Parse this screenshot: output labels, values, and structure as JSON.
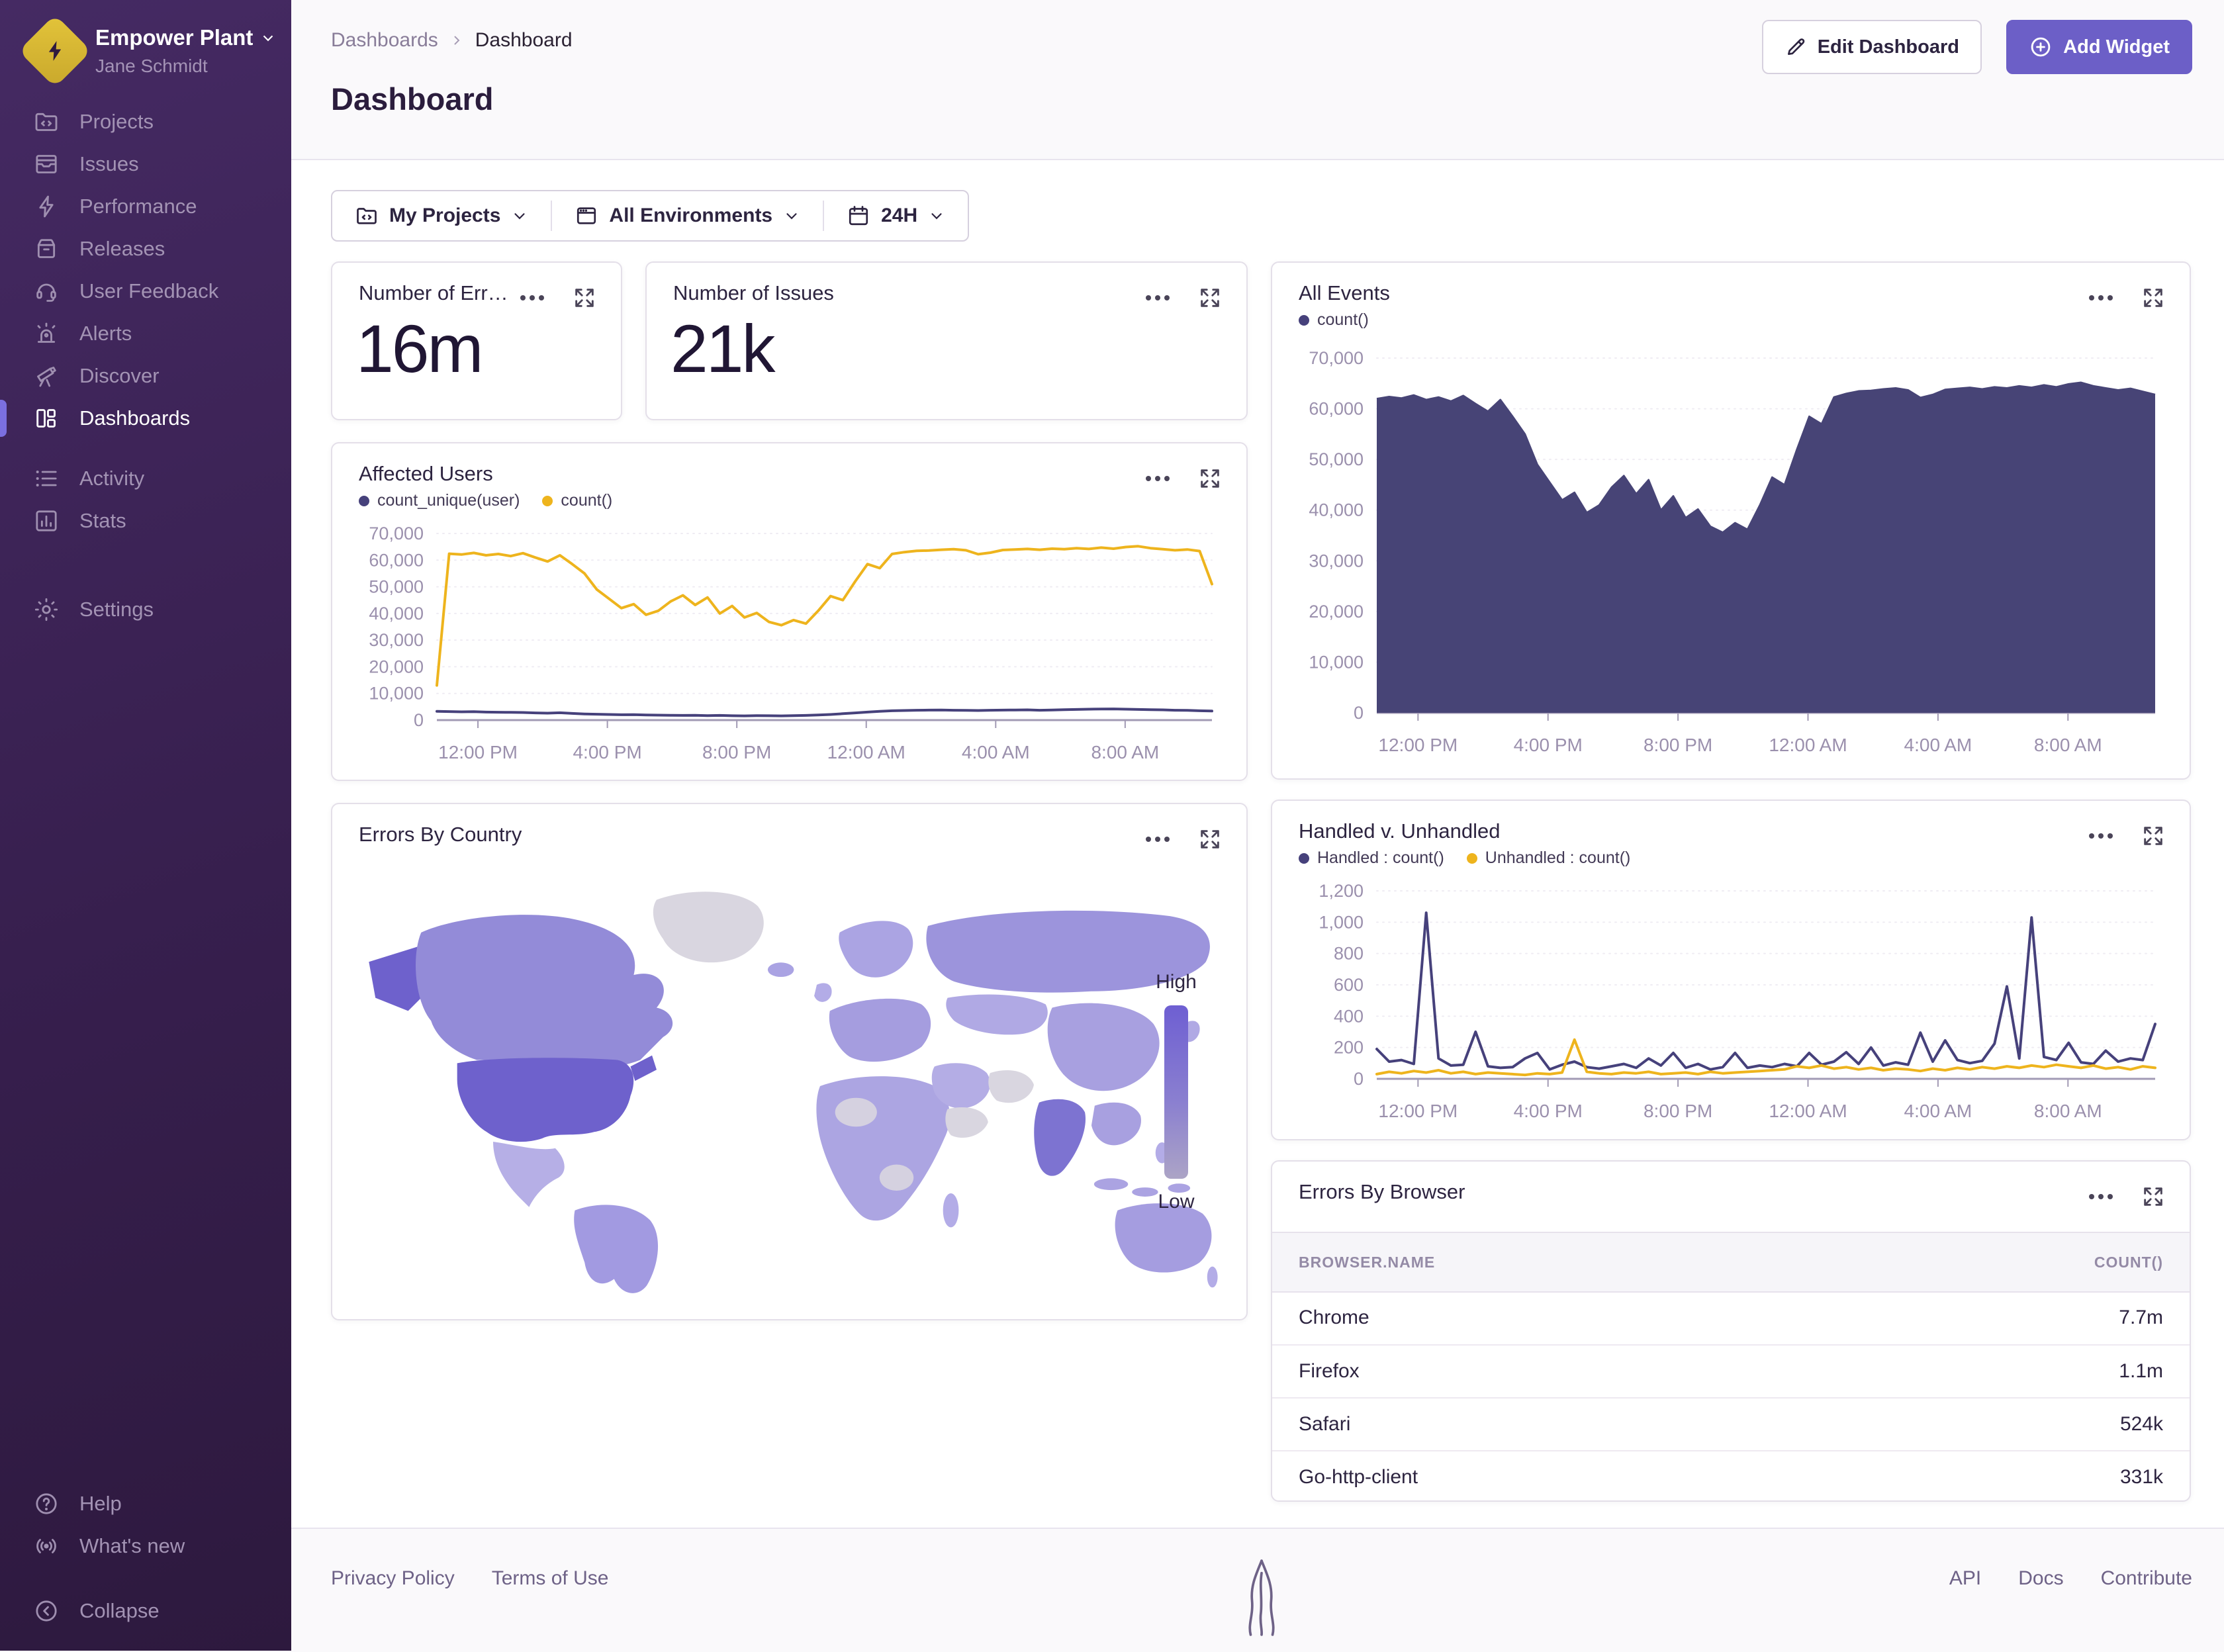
{
  "sidebar": {
    "org_name": "Empower Plant",
    "user_name": "Jane Schmidt",
    "items": [
      {
        "label": "Projects",
        "icon": "projects-icon"
      },
      {
        "label": "Issues",
        "icon": "issues-icon"
      },
      {
        "label": "Performance",
        "icon": "performance-icon"
      },
      {
        "label": "Releases",
        "icon": "releases-icon"
      },
      {
        "label": "User Feedback",
        "icon": "user-feedback-icon"
      },
      {
        "label": "Alerts",
        "icon": "alerts-icon"
      },
      {
        "label": "Discover",
        "icon": "discover-icon"
      },
      {
        "label": "Dashboards",
        "icon": "dashboards-icon",
        "active": true
      }
    ],
    "secondary": [
      {
        "label": "Activity",
        "icon": "activity-icon"
      },
      {
        "label": "Stats",
        "icon": "stats-icon"
      }
    ],
    "settings_label": "Settings",
    "footer_items": [
      {
        "label": "Help",
        "icon": "help-icon"
      },
      {
        "label": "What's new",
        "icon": "broadcast-icon"
      },
      {
        "label": "Collapse",
        "icon": "collapse-icon"
      }
    ]
  },
  "header": {
    "breadcrumb": [
      "Dashboards",
      "Dashboard"
    ],
    "title": "Dashboard",
    "edit_button": "Edit Dashboard",
    "add_button": "Add Widget"
  },
  "filters": {
    "projects": "My Projects",
    "environments": "All Environments",
    "time_range": "24H"
  },
  "kpis": [
    {
      "title": "Number of Err…",
      "value": "16m"
    },
    {
      "title": "Number of Issues",
      "value": "21k"
    }
  ],
  "chart_data": [
    {
      "id": "all-events",
      "type": "area",
      "title": "All Events",
      "legend": [
        {
          "label": "count()",
          "color": "#46417b"
        }
      ],
      "x_ticks": [
        "12:00 PM",
        "4:00 PM",
        "8:00 PM",
        "12:00 AM",
        "4:00 AM",
        "8:00 AM"
      ],
      "x_tick_pos": [
        0.053,
        0.22,
        0.387,
        0.554,
        0.721,
        0.888
      ],
      "ylim": [
        0,
        70000
      ],
      "yticks": [
        0,
        10000,
        20000,
        30000,
        40000,
        50000,
        60000,
        70000
      ],
      "grid": true,
      "legend_position": "top-left",
      "series": [
        {
          "name": "count()",
          "color": "#474476",
          "values": [
            62000,
            62400,
            62100,
            62700,
            61800,
            62300,
            61500,
            62600,
            61000,
            59500,
            61800,
            58500,
            55000,
            49000,
            45500,
            42000,
            43500,
            39500,
            41000,
            44500,
            46800,
            43200,
            46000,
            40000,
            42800,
            38500,
            40200,
            36800,
            35600,
            37500,
            36200,
            41000,
            46500,
            45000,
            52000,
            58500,
            57000,
            62300,
            63000,
            63500,
            63600,
            63900,
            64100,
            63700,
            62200,
            62800,
            63800,
            64000,
            64200,
            63900,
            64300,
            64100,
            64500,
            64200,
            64700,
            64300,
            64900,
            65200,
            64500,
            64100,
            63700,
            64000,
            63400,
            62800
          ]
        }
      ]
    },
    {
      "id": "affected-users",
      "type": "line",
      "title": "Affected Users",
      "legend": [
        {
          "label": "count_unique(user)",
          "color": "#46417b"
        },
        {
          "label": "count()",
          "color": "#eeb41d"
        }
      ],
      "x_ticks": [
        "12:00 PM",
        "4:00 PM",
        "8:00 PM",
        "12:00 AM",
        "4:00 AM",
        "8:00 AM"
      ],
      "x_tick_pos": [
        0.053,
        0.22,
        0.387,
        0.554,
        0.721,
        0.888
      ],
      "ylim": [
        0,
        70000
      ],
      "yticks": [
        0,
        10000,
        20000,
        30000,
        40000,
        50000,
        60000,
        70000
      ],
      "grid": true,
      "legend_position": "top-left",
      "series": [
        {
          "name": "count_unique(user)",
          "color": "#46417b",
          "values": [
            3300,
            3200,
            3100,
            3150,
            3000,
            2950,
            2900,
            2850,
            2700,
            2600,
            2750,
            2500,
            2300,
            2200,
            2100,
            2000,
            2050,
            1900,
            1850,
            1800,
            1750,
            1800,
            1700,
            1750,
            1650,
            1600,
            1700,
            1650,
            1600,
            1700,
            1750,
            1900,
            2100,
            2400,
            2700,
            3000,
            3300,
            3500,
            3600,
            3700,
            3750,
            3800,
            3700,
            3650,
            3600,
            3700,
            3750,
            3800,
            3850,
            3700,
            3800,
            3900,
            4000,
            4100,
            4150,
            4200,
            4100,
            4000,
            3900,
            3850,
            3700,
            3650,
            3500,
            3400
          ]
        },
        {
          "name": "count()",
          "color": "#eeb41d",
          "values": [
            13000,
            62400,
            62100,
            62700,
            61800,
            62300,
            61500,
            62600,
            61000,
            59500,
            61800,
            58500,
            55000,
            49000,
            45500,
            42000,
            43500,
            39500,
            41000,
            44500,
            46800,
            43200,
            46000,
            40000,
            42800,
            38500,
            40200,
            36800,
            35600,
            37500,
            36200,
            41000,
            46500,
            45000,
            52000,
            58500,
            57000,
            62300,
            63000,
            63500,
            63600,
            63900,
            64100,
            63700,
            62200,
            62800,
            63800,
            64000,
            64200,
            63900,
            64300,
            64100,
            64500,
            64200,
            64700,
            64300,
            64900,
            65200,
            64500,
            64100,
            63700,
            64000,
            63400,
            51000
          ]
        }
      ]
    },
    {
      "id": "handled-unhandled",
      "type": "line",
      "title": "Handled v. Unhandled",
      "legend": [
        {
          "label": "Handled : count()",
          "color": "#46417b"
        },
        {
          "label": "Unhandled : count()",
          "color": "#eeb41d"
        }
      ],
      "x_ticks": [
        "12:00 PM",
        "4:00 PM",
        "8:00 PM",
        "12:00 AM",
        "4:00 AM",
        "8:00 AM"
      ],
      "x_tick_pos": [
        0.053,
        0.22,
        0.387,
        0.554,
        0.721,
        0.888
      ],
      "ylim": [
        0,
        1200
      ],
      "yticks": [
        0,
        200,
        400,
        600,
        800,
        1000,
        1200
      ],
      "grid": true,
      "legend_position": "top-left",
      "series": [
        {
          "name": "Handled : count()",
          "color": "#46417b",
          "values": [
            190,
            110,
            120,
            95,
            1060,
            130,
            85,
            90,
            300,
            80,
            70,
            75,
            130,
            165,
            60,
            90,
            110,
            75,
            65,
            80,
            95,
            70,
            130,
            85,
            165,
            70,
            95,
            60,
            75,
            165,
            70,
            85,
            75,
            95,
            80,
            165,
            90,
            110,
            170,
            95,
            200,
            85,
            105,
            90,
            295,
            110,
            245,
            120,
            100,
            115,
            225,
            590,
            130,
            1030,
            140,
            120,
            230,
            105,
            95,
            180,
            110,
            130,
            120,
            350
          ]
        },
        {
          "name": "Unhandled : count()",
          "color": "#eeb41d",
          "values": [
            30,
            45,
            35,
            50,
            40,
            55,
            35,
            45,
            30,
            40,
            35,
            30,
            25,
            35,
            30,
            40,
            250,
            45,
            35,
            30,
            40,
            35,
            45,
            30,
            35,
            40,
            30,
            45,
            35,
            40,
            45,
            50,
            55,
            60,
            80,
            70,
            85,
            65,
            75,
            60,
            70,
            55,
            65,
            60,
            50,
            65,
            55,
            70,
            60,
            75,
            65,
            80,
            70,
            85,
            75,
            90,
            80,
            70,
            85,
            65,
            75,
            60,
            80,
            70
          ]
        }
      ]
    },
    {
      "id": "errors-by-country",
      "type": "choropleth",
      "title": "Errors By Country",
      "legend_high": "High",
      "legend_low": "Low",
      "highest_country": "United States",
      "colors": {
        "high": "#6e61cc",
        "medium": "#8f87d5",
        "low": "#aaa3e3",
        "no_data": "#d9d6e0"
      }
    },
    {
      "id": "errors-by-browser",
      "type": "table",
      "title": "Errors By Browser",
      "columns": [
        "BROWSER.NAME",
        "COUNT()"
      ],
      "rows": [
        {
          "name": "Chrome",
          "count": "7.7m"
        },
        {
          "name": "Firefox",
          "count": "1.1m"
        },
        {
          "name": "Safari",
          "count": "524k"
        },
        {
          "name": "Go-http-client",
          "count": "331k"
        }
      ]
    }
  ],
  "footer": {
    "left": [
      "Privacy Policy",
      "Terms of Use"
    ],
    "right": [
      "API",
      "Docs",
      "Contribute"
    ]
  },
  "colors": {
    "accent": "#6c5fc7",
    "series_indigo": "#46417b",
    "series_yellow": "#eeb41d",
    "map_high": "#6e61cc",
    "map_no_data": "#d9d6e0",
    "sidebar_active": "#7b6fe0"
  }
}
